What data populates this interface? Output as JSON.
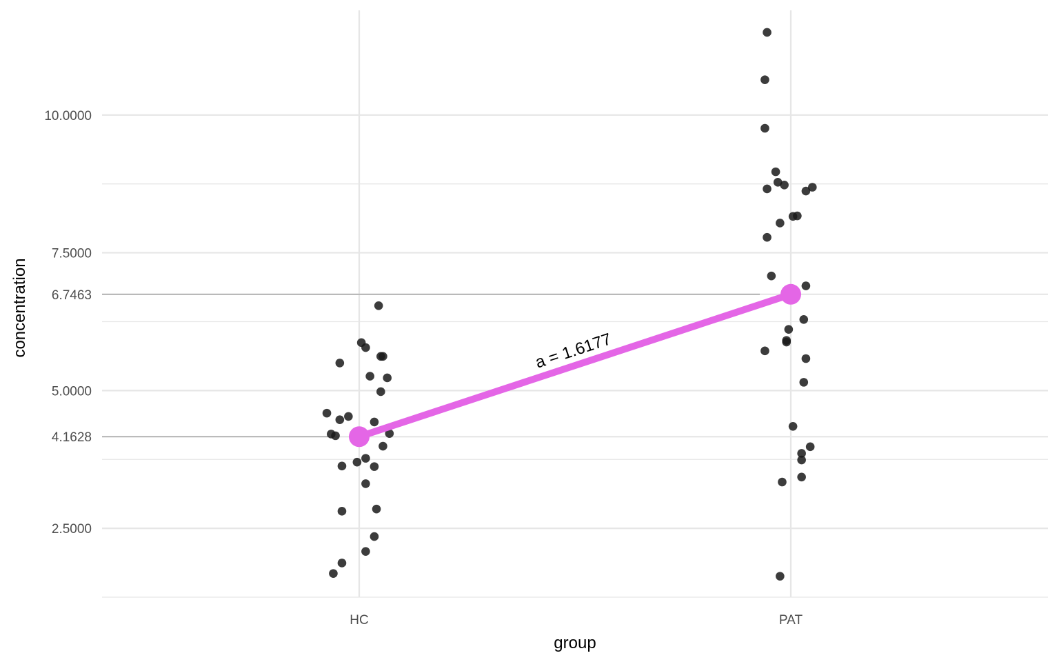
{
  "chart_data": {
    "type": "scatter",
    "xlabel": "group",
    "ylabel": "concentration",
    "categories": [
      "HC",
      "PAT"
    ],
    "ylim": [
      1.25,
      11.9
    ],
    "yticks": [
      {
        "value": 2.5,
        "label": "2.5000"
      },
      {
        "value": 4.1628,
        "label": "4.1628"
      },
      {
        "value": 5.0,
        "label": "5.0000"
      },
      {
        "value": 6.7463,
        "label": "6.7463"
      },
      {
        "value": 7.5,
        "label": "7.5000"
      },
      {
        "value": 10.0,
        "label": "10.0000"
      }
    ],
    "minor_grid": [
      1.25,
      3.75,
      6.25,
      8.75
    ],
    "grid": true,
    "legend": "none",
    "colors": {
      "points": "#1a1a1a",
      "mean": "#e466e6",
      "ref_line": "#b0b0b0",
      "grid": "#e6e6e6"
    },
    "series": [
      {
        "group": "HC",
        "points": [
          {
            "x": -0.12,
            "y": 1.68
          },
          {
            "x": -0.08,
            "y": 1.87
          },
          {
            "x": 0.03,
            "y": 2.08
          },
          {
            "x": 0.07,
            "y": 2.35
          },
          {
            "x": -0.08,
            "y": 2.81
          },
          {
            "x": 0.08,
            "y": 2.85
          },
          {
            "x": 0.03,
            "y": 3.31
          },
          {
            "x": -0.08,
            "y": 3.63
          },
          {
            "x": 0.07,
            "y": 3.62
          },
          {
            "x": -0.01,
            "y": 3.7
          },
          {
            "x": 0.03,
            "y": 3.77
          },
          {
            "x": 0.11,
            "y": 3.99
          },
          {
            "x": -0.13,
            "y": 4.21
          },
          {
            "x": -0.11,
            "y": 4.18
          },
          {
            "x": 0.14,
            "y": 4.22
          },
          {
            "x": -0.09,
            "y": 4.47
          },
          {
            "x": -0.05,
            "y": 4.53
          },
          {
            "x": 0.07,
            "y": 4.43
          },
          {
            "x": -0.15,
            "y": 4.59
          },
          {
            "x": 0.1,
            "y": 4.98
          },
          {
            "x": 0.05,
            "y": 5.26
          },
          {
            "x": 0.13,
            "y": 5.23
          },
          {
            "x": -0.09,
            "y": 5.5
          },
          {
            "x": 0.1,
            "y": 5.62
          },
          {
            "x": 0.11,
            "y": 5.62
          },
          {
            "x": 0.03,
            "y": 5.78
          },
          {
            "x": 0.01,
            "y": 5.87
          },
          {
            "x": 0.09,
            "y": 6.54
          }
        ]
      },
      {
        "group": "PAT",
        "points": [
          {
            "x": -0.05,
            "y": 1.63
          },
          {
            "x": -0.04,
            "y": 3.34
          },
          {
            "x": 0.05,
            "y": 3.43
          },
          {
            "x": 0.05,
            "y": 3.74
          },
          {
            "x": 0.05,
            "y": 3.86
          },
          {
            "x": 0.09,
            "y": 3.98
          },
          {
            "x": 0.01,
            "y": 4.35
          },
          {
            "x": 0.06,
            "y": 5.15
          },
          {
            "x": 0.07,
            "y": 5.58
          },
          {
            "x": -0.12,
            "y": 5.72
          },
          {
            "x": -0.02,
            "y": 5.88
          },
          {
            "x": -0.02,
            "y": 5.91
          },
          {
            "x": -0.01,
            "y": 6.11
          },
          {
            "x": 0.06,
            "y": 6.29
          },
          {
            "x": 0.07,
            "y": 6.9
          },
          {
            "x": -0.09,
            "y": 7.08
          },
          {
            "x": -0.11,
            "y": 7.78
          },
          {
            "x": -0.05,
            "y": 8.04
          },
          {
            "x": 0.01,
            "y": 8.16
          },
          {
            "x": 0.03,
            "y": 8.17
          },
          {
            "x": -0.11,
            "y": 8.66
          },
          {
            "x": -0.06,
            "y": 8.78
          },
          {
            "x": -0.03,
            "y": 8.73
          },
          {
            "x": 0.07,
            "y": 8.62
          },
          {
            "x": 0.1,
            "y": 8.69
          },
          {
            "x": -0.07,
            "y": 8.97
          },
          {
            "x": -0.12,
            "y": 9.76
          },
          {
            "x": -0.12,
            "y": 10.64
          },
          {
            "x": -0.11,
            "y": 11.5
          }
        ]
      }
    ],
    "means": [
      {
        "group": "HC",
        "value": 4.1628
      },
      {
        "group": "PAT",
        "value": 6.7463
      }
    ],
    "annotation": {
      "text": "a = 1.6177",
      "slope": 1.6177
    }
  }
}
